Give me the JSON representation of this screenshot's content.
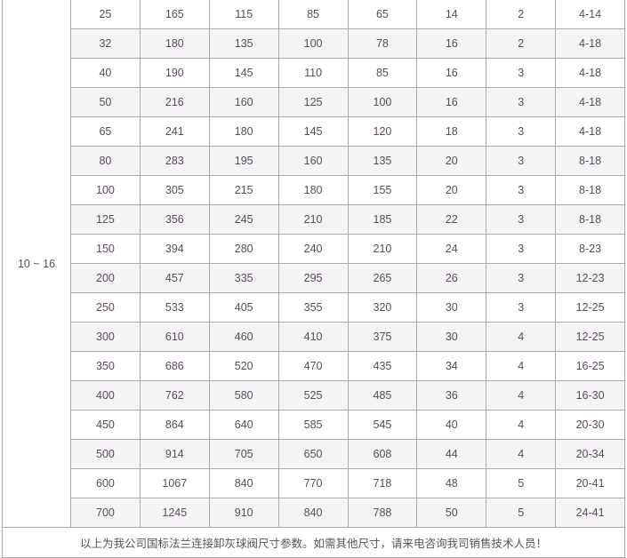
{
  "pressure_group": "10 ~ 16",
  "rows": [
    [
      "25",
      "165",
      "115",
      "85",
      "65",
      "14",
      "2",
      "4-14"
    ],
    [
      "32",
      "180",
      "135",
      "100",
      "78",
      "16",
      "2",
      "4-18"
    ],
    [
      "40",
      "190",
      "145",
      "110",
      "85",
      "16",
      "3",
      "4-18"
    ],
    [
      "50",
      "216",
      "160",
      "125",
      "100",
      "16",
      "3",
      "4-18"
    ],
    [
      "65",
      "241",
      "180",
      "145",
      "120",
      "18",
      "3",
      "4-18"
    ],
    [
      "80",
      "283",
      "195",
      "160",
      "135",
      "20",
      "3",
      "8-18"
    ],
    [
      "100",
      "305",
      "215",
      "180",
      "155",
      "20",
      "3",
      "8-18"
    ],
    [
      "125",
      "356",
      "245",
      "210",
      "185",
      "22",
      "3",
      "8-18"
    ],
    [
      "150",
      "394",
      "280",
      "240",
      "210",
      "24",
      "3",
      "8-23"
    ],
    [
      "200",
      "457",
      "335",
      "295",
      "265",
      "26",
      "3",
      "12-23"
    ],
    [
      "250",
      "533",
      "405",
      "355",
      "320",
      "30",
      "3",
      "12-25"
    ],
    [
      "300",
      "610",
      "460",
      "410",
      "375",
      "30",
      "4",
      "12-25"
    ],
    [
      "350",
      "686",
      "520",
      "470",
      "435",
      "34",
      "4",
      "16-25"
    ],
    [
      "400",
      "762",
      "580",
      "525",
      "485",
      "36",
      "4",
      "16-30"
    ],
    [
      "450",
      "864",
      "640",
      "585",
      "545",
      "40",
      "4",
      "20-30"
    ],
    [
      "500",
      "914",
      "705",
      "650",
      "608",
      "44",
      "4",
      "20-34"
    ],
    [
      "600",
      "1067",
      "840",
      "770",
      "718",
      "48",
      "5",
      "20-41"
    ],
    [
      "700",
      "1245",
      "910",
      "840",
      "788",
      "50",
      "5",
      "24-41"
    ]
  ],
  "footer_note": "以上为我公司国标法兰连接卸灰球阀尺寸参数。如需其他尺寸，请来电咨询我司销售技术人员！",
  "colors": {
    "text": "#5a4a5e",
    "border": "#aaaaaa",
    "alt_row": "#f4f4f4"
  }
}
